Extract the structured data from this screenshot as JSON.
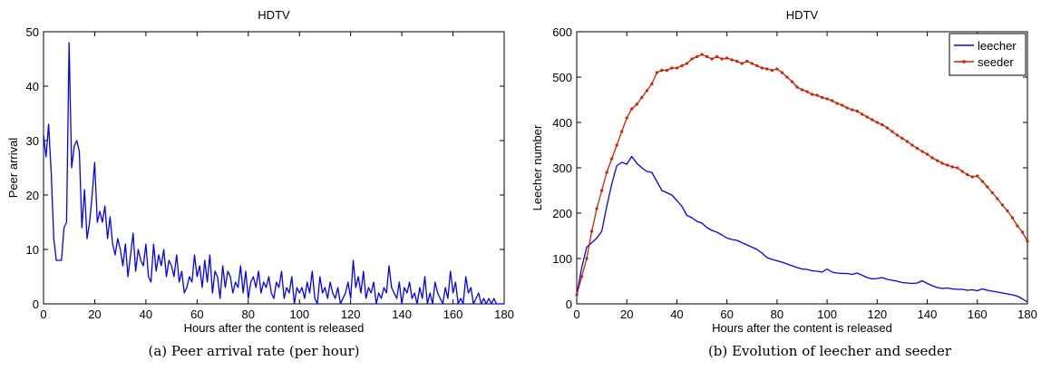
{
  "captions": {
    "a": "(a) Peer arrival rate (per hour)",
    "b": "(b) Evolution of leecher and seeder"
  },
  "chart_data": [
    {
      "type": "line",
      "title": "HDTV",
      "xlabel": "Hours after the content is released",
      "ylabel": "Peer arrival",
      "xlim": [
        0,
        180
      ],
      "ylim": [
        0,
        50
      ],
      "xticks": [
        0,
        20,
        40,
        60,
        80,
        100,
        120,
        140,
        160,
        180
      ],
      "yticks": [
        0,
        10,
        20,
        30,
        40,
        50
      ],
      "grid": false,
      "color": "#0000ff",
      "series": [
        {
          "x": [
            0,
            1,
            2,
            3,
            4,
            5,
            6,
            7,
            8,
            9,
            10,
            11,
            12,
            13,
            14,
            15,
            16,
            17,
            18,
            19,
            20,
            21,
            22,
            23,
            24,
            25,
            26,
            27,
            28,
            29,
            30,
            31,
            32,
            33,
            34,
            35,
            36,
            37,
            38,
            39,
            40,
            41,
            42,
            43,
            44,
            45,
            46,
            47,
            48,
            49,
            50,
            51,
            52,
            53,
            54,
            55,
            56,
            57,
            58,
            59,
            60,
            61,
            62,
            63,
            64,
            65,
            66,
            67,
            68,
            69,
            70,
            71,
            72,
            73,
            74,
            75,
            76,
            77,
            78,
            79,
            80,
            81,
            82,
            83,
            84,
            85,
            86,
            87,
            88,
            89,
            90,
            91,
            92,
            93,
            94,
            95,
            96,
            97,
            98,
            99,
            100,
            101,
            102,
            103,
            104,
            105,
            106,
            107,
            108,
            109,
            110,
            111,
            112,
            113,
            114,
            115,
            116,
            117,
            118,
            119,
            120,
            121,
            122,
            123,
            124,
            125,
            126,
            127,
            128,
            129,
            130,
            131,
            132,
            133,
            134,
            135,
            136,
            137,
            138,
            139,
            140,
            141,
            142,
            143,
            144,
            145,
            146,
            147,
            148,
            149,
            150,
            151,
            152,
            153,
            154,
            155,
            156,
            157,
            158,
            159,
            160,
            161,
            162,
            163,
            164,
            165,
            166,
            167,
            168,
            169,
            170,
            171,
            172,
            173,
            174,
            175,
            176,
            177,
            178,
            179,
            180
          ],
          "y": [
            31,
            27,
            33,
            24,
            12,
            8,
            8,
            8,
            14,
            15,
            48,
            25,
            29,
            30,
            28,
            14,
            21,
            12,
            15,
            20,
            26,
            15,
            17,
            15,
            18,
            12,
            16,
            11,
            9,
            12,
            10,
            7,
            11,
            5,
            9,
            13,
            6,
            10,
            8,
            7,
            11,
            5,
            4,
            11,
            6,
            9,
            7,
            10,
            5,
            8,
            7,
            5,
            9,
            4,
            6,
            2,
            3,
            5,
            4,
            9,
            5,
            7,
            3,
            8,
            4,
            9,
            2,
            6,
            5,
            1,
            7,
            3,
            6,
            5,
            2,
            4,
            3,
            7,
            2,
            6,
            1,
            4,
            5,
            3,
            6,
            2,
            4,
            3,
            5,
            2,
            1,
            4,
            3,
            6,
            1,
            3,
            2,
            5,
            0,
            3,
            2,
            3,
            1,
            4,
            2,
            6,
            1,
            0,
            5,
            2,
            3,
            1,
            4,
            2,
            1,
            3,
            0,
            1,
            2,
            4,
            1,
            8,
            3,
            5,
            2,
            6,
            1,
            3,
            2,
            4,
            0,
            2,
            1,
            3,
            2,
            7,
            3,
            2,
            1,
            4,
            0,
            3,
            2,
            4,
            1,
            2,
            0,
            3,
            1,
            5,
            0,
            2,
            0,
            4,
            2,
            1,
            0,
            3,
            1,
            6,
            2,
            4,
            0,
            1,
            0,
            5,
            2,
            3,
            0,
            1,
            2,
            0,
            1,
            0,
            1,
            0,
            1,
            0,
            0,
            0,
            0
          ]
        }
      ]
    },
    {
      "type": "line",
      "title": "HDTV",
      "xlabel": "Hours after the content is released",
      "ylabel": "Leecher number",
      "xlim": [
        0,
        180
      ],
      "ylim": [
        0,
        600
      ],
      "xticks": [
        0,
        20,
        40,
        60,
        80,
        100,
        120,
        140,
        160,
        180
      ],
      "yticks": [
        0,
        100,
        200,
        300,
        400,
        500,
        600
      ],
      "grid": false,
      "legend": "top-right",
      "series": [
        {
          "name": "leecher",
          "color": "#0000ff",
          "marker": "none",
          "x": [
            0,
            2,
            4,
            6,
            8,
            10,
            12,
            14,
            16,
            18,
            20,
            22,
            24,
            26,
            28,
            30,
            32,
            34,
            36,
            38,
            40,
            42,
            44,
            46,
            48,
            50,
            52,
            54,
            56,
            58,
            60,
            62,
            64,
            66,
            68,
            70,
            72,
            74,
            76,
            78,
            80,
            82,
            84,
            86,
            88,
            90,
            92,
            94,
            96,
            98,
            100,
            102,
            104,
            106,
            108,
            110,
            112,
            114,
            116,
            118,
            120,
            122,
            124,
            126,
            128,
            130,
            132,
            134,
            136,
            138,
            140,
            142,
            144,
            146,
            148,
            150,
            152,
            154,
            156,
            158,
            160,
            162,
            164,
            166,
            168,
            170,
            172,
            174,
            176,
            178,
            180
          ],
          "y": [
            20,
            80,
            125,
            135,
            145,
            160,
            215,
            265,
            305,
            312,
            308,
            325,
            310,
            300,
            292,
            290,
            270,
            250,
            245,
            240,
            228,
            215,
            195,
            190,
            182,
            178,
            168,
            162,
            158,
            152,
            145,
            142,
            140,
            135,
            130,
            125,
            120,
            112,
            102,
            98,
            95,
            92,
            88,
            84,
            80,
            77,
            76,
            73,
            72,
            70,
            77,
            70,
            68,
            67,
            67,
            65,
            68,
            63,
            58,
            55,
            56,
            58,
            54,
            52,
            50,
            47,
            46,
            45,
            46,
            51,
            45,
            40,
            36,
            34,
            35,
            33,
            32,
            32,
            30,
            31,
            29,
            33,
            30,
            28,
            26,
            24,
            22,
            20,
            17,
            11,
            4
          ]
        },
        {
          "name": "seeder",
          "color": "#cc2200",
          "marker": "dot",
          "x": [
            0,
            2,
            4,
            6,
            8,
            10,
            12,
            14,
            16,
            18,
            20,
            22,
            24,
            26,
            28,
            30,
            32,
            34,
            36,
            38,
            40,
            42,
            44,
            46,
            48,
            50,
            52,
            54,
            56,
            58,
            60,
            62,
            64,
            66,
            68,
            70,
            72,
            74,
            76,
            78,
            80,
            82,
            84,
            86,
            88,
            90,
            92,
            94,
            96,
            98,
            100,
            102,
            104,
            106,
            108,
            110,
            112,
            114,
            116,
            118,
            120,
            122,
            124,
            126,
            128,
            130,
            132,
            134,
            136,
            138,
            140,
            142,
            144,
            146,
            148,
            150,
            152,
            154,
            156,
            158,
            160,
            162,
            164,
            166,
            168,
            170,
            172,
            174,
            176,
            178,
            180
          ],
          "y": [
            20,
            60,
            100,
            160,
            210,
            250,
            290,
            320,
            350,
            380,
            410,
            430,
            440,
            455,
            470,
            485,
            510,
            515,
            515,
            520,
            520,
            525,
            530,
            540,
            545,
            550,
            545,
            540,
            545,
            540,
            542,
            538,
            535,
            530,
            535,
            530,
            525,
            520,
            518,
            515,
            518,
            510,
            500,
            490,
            478,
            472,
            468,
            462,
            460,
            455,
            452,
            448,
            442,
            438,
            432,
            428,
            425,
            418,
            412,
            406,
            400,
            395,
            388,
            380,
            372,
            365,
            358,
            350,
            343,
            336,
            330,
            322,
            316,
            310,
            306,
            302,
            300,
            292,
            285,
            280,
            282,
            270,
            258,
            245,
            232,
            218,
            205,
            190,
            172,
            158,
            138
          ]
        }
      ]
    }
  ]
}
